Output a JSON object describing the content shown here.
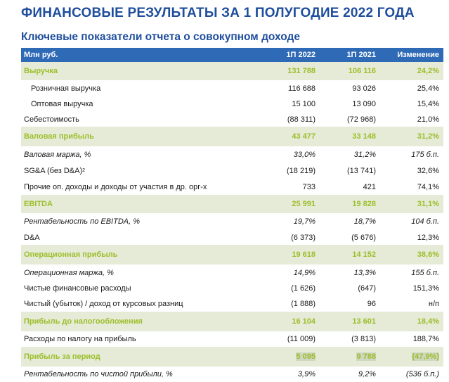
{
  "title": "ФИНАНСОВЫЕ РЕЗУЛЬТАТЫ ЗА 1 ПОЛУГОДИЕ 2022 ГОДА",
  "subtitle": "Ключевые показатели отчета о совокупном доходе",
  "columns": [
    "Млн руб.",
    "1П 2022",
    "1П 2021",
    "Изменение"
  ],
  "rows": [
    {
      "label": "Выручка",
      "v2022": "131 788",
      "v2021": "106 116",
      "change": "24,2%"
    },
    {
      "label": "Розничная выручка",
      "v2022": "116 688",
      "v2021": "93 026",
      "change": "25,4%"
    },
    {
      "label": "Оптовая выручка",
      "v2022": "15 100",
      "v2021": "13 090",
      "change": "15,4%"
    },
    {
      "label": "Себестоимость",
      "v2022": "(88 311)",
      "v2021": "(72 968)",
      "change": "21,0%"
    },
    {
      "label": "Валовая прибыль",
      "v2022": "43 477",
      "v2021": "33 148",
      "change": "31,2%"
    },
    {
      "label": "Валовая маржа, %",
      "v2022": "33,0%",
      "v2021": "31,2%",
      "change": "175 б.п."
    },
    {
      "label": "SG&A (без D&A)",
      "sup": "2",
      "v2022": "(18 219)",
      "v2021": "(13 741)",
      "change": "32,6%"
    },
    {
      "label": "Прочие оп. доходы и доходы от участия в др. орг-х",
      "v2022": "733",
      "v2021": "421",
      "change": "74,1%"
    },
    {
      "label": "EBITDA",
      "v2022": "25 991",
      "v2021": "19 828",
      "change": "31,1%"
    },
    {
      "label": "Рентабельность по EBITDA, %",
      "v2022": "19,7%",
      "v2021": "18,7%",
      "change": "104 б.п."
    },
    {
      "label": "D&A",
      "v2022": "(6 373)",
      "v2021": "(5 676)",
      "change": "12,3%"
    },
    {
      "label": "Операционная прибыль",
      "v2022": "19 618",
      "v2021": "14 152",
      "change": "38,6%"
    },
    {
      "label": "Операционная маржа, %",
      "v2022": "14,9%",
      "v2021": "13,3%",
      "change": "155 б.п."
    },
    {
      "label": "Чистые финансовые расходы",
      "v2022": "(1 626)",
      "v2021": "(647)",
      "change": "151,3%"
    },
    {
      "label": "Чистый (убыток) / доход от курсовых разниц",
      "v2022": "(1 888)",
      "v2021": "96",
      "change": "н/п"
    },
    {
      "label": "Прибыль до налогообложения",
      "v2022": "16 104",
      "v2021": "13 601",
      "change": "18,4%"
    },
    {
      "label": "Расходы по налогу на прибыль",
      "v2022": "(11 009)",
      "v2021": "(3 813)",
      "change": "188,7%"
    },
    {
      "label": "Прибыль за период",
      "v2022": "5 095",
      "v2021": "9 788",
      "change": "(47,9%)"
    },
    {
      "label": "Рентабельность по чистой прибыли, %",
      "v2022": "3,9%",
      "v2021": "9,2%",
      "change": "(536 б.п.)"
    }
  ]
}
